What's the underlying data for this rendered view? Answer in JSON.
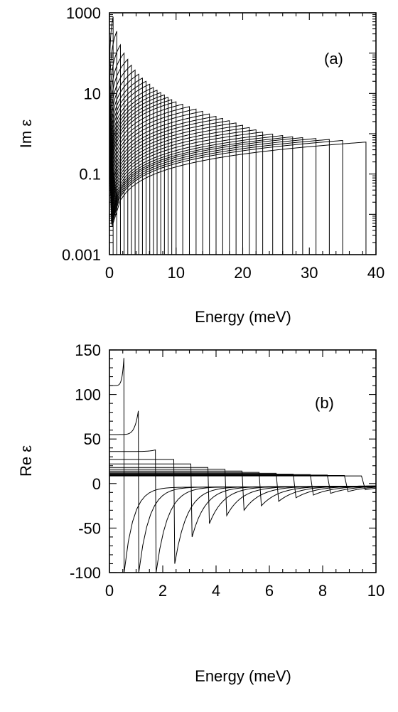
{
  "chart_data": [
    {
      "panel": "(a)",
      "type": "line",
      "xlabel": "Energy (meV)",
      "ylabel": "Im ε",
      "xlim": [
        0,
        40
      ],
      "ylim": [
        0.001,
        1000
      ],
      "yscale": "log",
      "x_ticks": [
        0,
        10,
        20,
        30,
        40
      ],
      "x_tick_labels": [
        "0",
        "10",
        "20",
        "30",
        "40"
      ],
      "y_ticks": [
        0.001,
        0.1,
        10,
        1000
      ],
      "y_tick_labels": [
        "0.001",
        "0.1",
        "10",
        "1000"
      ],
      "grid": false,
      "legend": "none",
      "series_description": "family of many curves, each rising from the left and ending at a sharp cutoff energy",
      "cutoff_energies": [
        0.55,
        1.1,
        1.65,
        2.2,
        2.75,
        3.3,
        3.85,
        4.4,
        4.95,
        5.5,
        6.05,
        6.6,
        7.15,
        7.7,
        8.25,
        8.8,
        9.35,
        10.0,
        11.0,
        12.0,
        13.0,
        14.0,
        15.0,
        16.0,
        17.0,
        18.0,
        19.0,
        20.0,
        21.0,
        22.0,
        23.0,
        24.5,
        26.0,
        27.5,
        29.0,
        31.0,
        33.0,
        35.0,
        38.5
      ],
      "cutoff_values": [
        800,
        350,
        160,
        100,
        70,
        50,
        38,
        30,
        24,
        20,
        17,
        14,
        12,
        10.5,
        9.2,
        8,
        7,
        6.2,
        5.4,
        4.7,
        4.1,
        3.6,
        3.1,
        2.7,
        2.4,
        2.1,
        1.85,
        1.62,
        1.42,
        1.25,
        1.1,
        0.98,
        0.9,
        0.84,
        0.8,
        0.76,
        0.72,
        0.68,
        0.62
      ]
    },
    {
      "panel": "(b)",
      "type": "line",
      "xlabel": "Energy (meV)",
      "ylabel": "Re ε",
      "xlim": [
        0,
        10
      ],
      "ylim": [
        -100,
        150
      ],
      "yscale": "linear",
      "x_ticks": [
        0,
        2,
        4,
        6,
        8,
        10
      ],
      "x_tick_labels": [
        "0",
        "2",
        "4",
        "6",
        "8",
        "10"
      ],
      "y_ticks": [
        -100,
        -50,
        0,
        50,
        100,
        150
      ],
      "y_tick_labels": [
        "-100",
        "-50",
        "0",
        "50",
        "100",
        "150"
      ],
      "grid": false,
      "legend": "none",
      "series_description": "family of resonance curves: each rises to a peak just below its resonance energy, drops to a negative minimum, then relaxes toward a small negative value",
      "resonance_energies": [
        0.55,
        1.1,
        1.75,
        2.45,
        3.1,
        3.75,
        4.4,
        5.05,
        5.7,
        6.35,
        7.0,
        7.65,
        8.3,
        8.95,
        9.6
      ],
      "start_values": [
        110,
        55,
        36,
        27,
        22,
        18,
        16,
        14,
        12.5,
        11.5,
        10.5,
        10,
        9.5,
        9,
        8.5
      ],
      "peak_values": [
        145,
        85,
        38,
        27,
        22,
        18,
        16,
        14,
        12.5,
        11.5,
        10.5,
        10,
        9.5,
        9,
        8.5
      ],
      "minimum_values": [
        -100,
        -100,
        -100,
        -90,
        -60,
        -45,
        -36,
        -30,
        -25,
        -20,
        -16,
        -13,
        -11,
        -9,
        -7
      ]
    }
  ]
}
